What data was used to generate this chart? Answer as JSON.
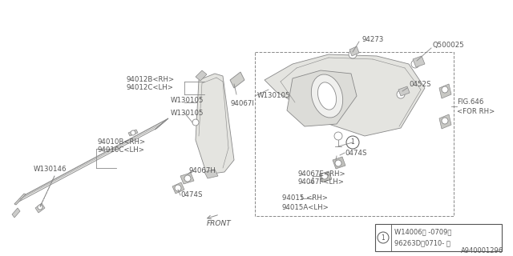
{
  "bg_color": "#ffffff",
  "line_color": "#888888",
  "text_color": "#555555",
  "dark_line": "#666666",
  "diagram_id": "A940001296",
  "legend_text1": "W14006（ -0709）",
  "legend_text2": "96263D（0710- ）"
}
